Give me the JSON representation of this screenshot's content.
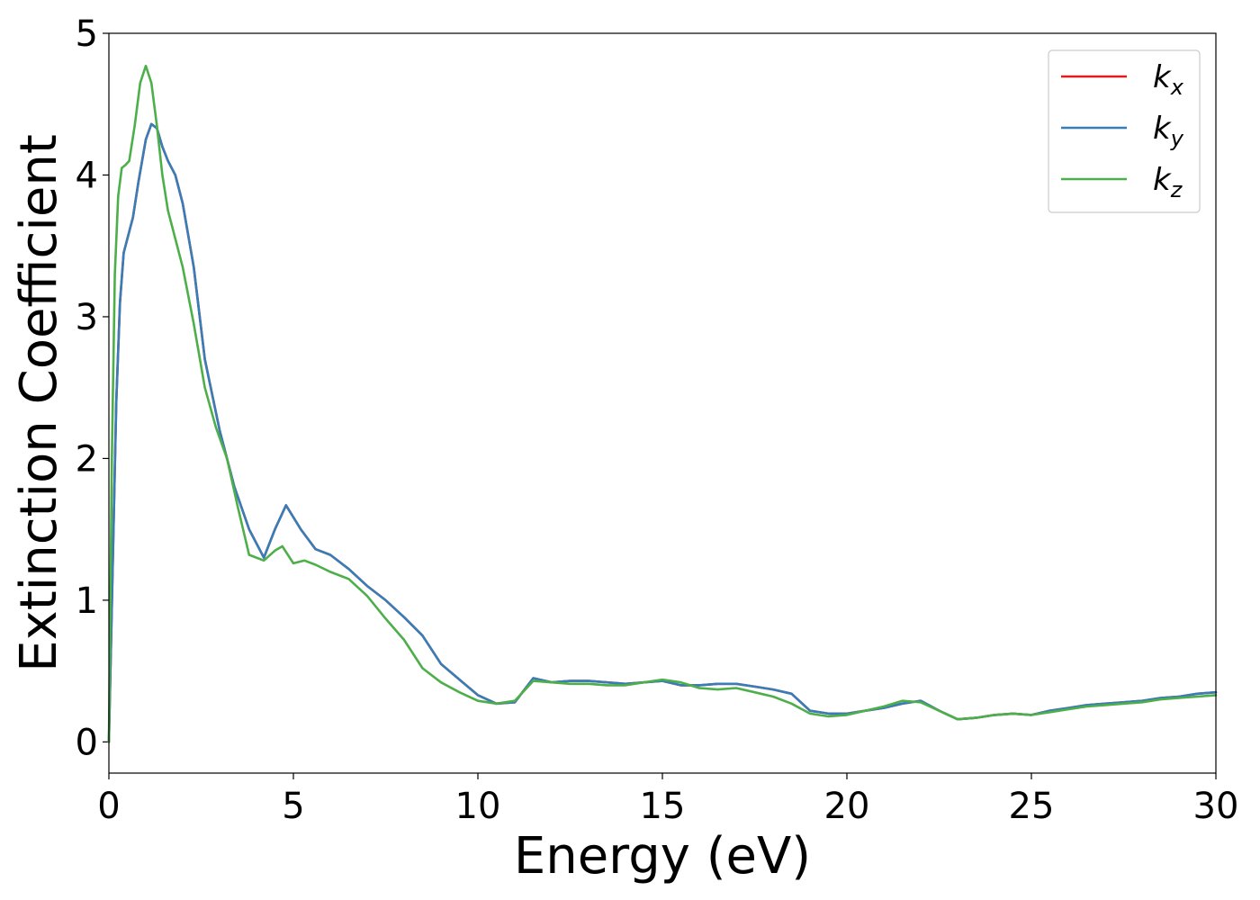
{
  "chart_data": {
    "type": "line",
    "xlabel": "Energy (eV)",
    "ylabel": "Extinction Coefficient",
    "xlim": [
      0,
      30
    ],
    "ylim": [
      -0.22,
      5
    ],
    "xticks": [
      0,
      5,
      10,
      15,
      20,
      25,
      30
    ],
    "yticks": [
      0,
      1,
      2,
      3,
      4,
      5
    ],
    "grid": false,
    "legend_position": "top-right",
    "series": [
      {
        "name": "k",
        "subscript": "x",
        "color": "#e41a1c",
        "x": [
          0,
          0.1,
          0.2,
          0.3,
          0.4,
          0.5,
          0.65,
          0.8,
          1.0,
          1.15,
          1.3,
          1.45,
          1.6,
          1.8,
          2.0,
          2.3,
          2.6,
          3.0,
          3.4,
          3.8,
          4.2,
          4.5,
          4.8,
          5.2,
          5.6,
          6.0,
          6.5,
          7.0,
          7.5,
          8.0,
          8.5,
          9.0,
          9.5,
          10.0,
          10.5,
          11.0,
          11.5,
          12.0,
          12.5,
          13.0,
          13.5,
          14.0,
          14.5,
          15.0,
          15.5,
          16.0,
          16.5,
          17.0,
          17.5,
          18.0,
          18.5,
          19.0,
          19.5,
          20.0,
          20.5,
          21.0,
          21.5,
          22.0,
          22.5,
          23.0,
          23.5,
          24.0,
          24.5,
          25.0,
          25.5,
          26.0,
          26.5,
          27.0,
          27.5,
          28.0,
          28.5,
          29.0,
          29.5,
          30.0
        ],
        "y": [
          0.0,
          1.2,
          2.4,
          3.1,
          3.45,
          3.55,
          3.7,
          3.95,
          4.25,
          4.36,
          4.33,
          4.2,
          4.1,
          4.0,
          3.8,
          3.35,
          2.7,
          2.2,
          1.8,
          1.5,
          1.3,
          1.5,
          1.67,
          1.5,
          1.36,
          1.32,
          1.22,
          1.1,
          1.0,
          0.88,
          0.75,
          0.55,
          0.44,
          0.33,
          0.27,
          0.28,
          0.45,
          0.42,
          0.43,
          0.43,
          0.42,
          0.41,
          0.42,
          0.43,
          0.4,
          0.4,
          0.41,
          0.41,
          0.39,
          0.37,
          0.34,
          0.22,
          0.2,
          0.2,
          0.22,
          0.24,
          0.27,
          0.29,
          0.22,
          0.16,
          0.17,
          0.19,
          0.2,
          0.19,
          0.22,
          0.24,
          0.26,
          0.27,
          0.28,
          0.29,
          0.31,
          0.32,
          0.34,
          0.35
        ]
      },
      {
        "name": "k",
        "subscript": "y",
        "color": "#377eb8",
        "x": [
          0,
          0.1,
          0.2,
          0.3,
          0.4,
          0.5,
          0.65,
          0.8,
          1.0,
          1.15,
          1.3,
          1.45,
          1.6,
          1.8,
          2.0,
          2.3,
          2.6,
          3.0,
          3.4,
          3.8,
          4.2,
          4.5,
          4.8,
          5.2,
          5.6,
          6.0,
          6.5,
          7.0,
          7.5,
          8.0,
          8.5,
          9.0,
          9.5,
          10.0,
          10.5,
          11.0,
          11.5,
          12.0,
          12.5,
          13.0,
          13.5,
          14.0,
          14.5,
          15.0,
          15.5,
          16.0,
          16.5,
          17.0,
          17.5,
          18.0,
          18.5,
          19.0,
          19.5,
          20.0,
          20.5,
          21.0,
          21.5,
          22.0,
          22.5,
          23.0,
          23.5,
          24.0,
          24.5,
          25.0,
          25.5,
          26.0,
          26.5,
          27.0,
          27.5,
          28.0,
          28.5,
          29.0,
          29.5,
          30.0
        ],
        "y": [
          0.0,
          1.2,
          2.4,
          3.1,
          3.45,
          3.55,
          3.7,
          3.95,
          4.25,
          4.36,
          4.33,
          4.2,
          4.1,
          4.0,
          3.8,
          3.35,
          2.7,
          2.2,
          1.8,
          1.5,
          1.3,
          1.5,
          1.67,
          1.5,
          1.36,
          1.32,
          1.22,
          1.1,
          1.0,
          0.88,
          0.75,
          0.55,
          0.44,
          0.33,
          0.27,
          0.28,
          0.45,
          0.42,
          0.43,
          0.43,
          0.42,
          0.41,
          0.42,
          0.43,
          0.4,
          0.4,
          0.41,
          0.41,
          0.39,
          0.37,
          0.34,
          0.22,
          0.2,
          0.2,
          0.22,
          0.24,
          0.27,
          0.29,
          0.22,
          0.16,
          0.17,
          0.19,
          0.2,
          0.19,
          0.22,
          0.24,
          0.26,
          0.27,
          0.28,
          0.29,
          0.31,
          0.32,
          0.34,
          0.35
        ]
      },
      {
        "name": "k",
        "subscript": "z",
        "color": "#4daf4a",
        "x": [
          0,
          0.08,
          0.16,
          0.25,
          0.35,
          0.45,
          0.55,
          0.7,
          0.85,
          1.0,
          1.15,
          1.3,
          1.45,
          1.6,
          1.8,
          2.0,
          2.3,
          2.6,
          2.9,
          3.2,
          3.5,
          3.8,
          4.2,
          4.5,
          4.7,
          5.0,
          5.3,
          5.6,
          6.0,
          6.5,
          7.0,
          7.5,
          8.0,
          8.5,
          9.0,
          9.5,
          10.0,
          10.5,
          11.0,
          11.5,
          12.0,
          12.5,
          13.0,
          13.5,
          14.0,
          14.5,
          15.0,
          15.5,
          16.0,
          16.5,
          17.0,
          17.5,
          18.0,
          18.5,
          19.0,
          19.5,
          20.0,
          20.5,
          21.0,
          21.5,
          22.0,
          22.5,
          23.0,
          23.5,
          24.0,
          24.5,
          25.0,
          25.5,
          26.0,
          26.5,
          27.0,
          27.5,
          28.0,
          28.5,
          29.0,
          29.5,
          30.0
        ],
        "y": [
          0.0,
          2.0,
          3.3,
          3.85,
          4.05,
          4.07,
          4.1,
          4.35,
          4.65,
          4.77,
          4.65,
          4.35,
          4.0,
          3.75,
          3.55,
          3.35,
          2.95,
          2.5,
          2.22,
          2.0,
          1.65,
          1.32,
          1.28,
          1.35,
          1.38,
          1.26,
          1.28,
          1.25,
          1.2,
          1.15,
          1.03,
          0.87,
          0.72,
          0.52,
          0.42,
          0.35,
          0.29,
          0.27,
          0.29,
          0.43,
          0.42,
          0.41,
          0.41,
          0.4,
          0.4,
          0.42,
          0.44,
          0.42,
          0.38,
          0.37,
          0.38,
          0.35,
          0.32,
          0.27,
          0.2,
          0.18,
          0.19,
          0.22,
          0.25,
          0.29,
          0.28,
          0.22,
          0.16,
          0.17,
          0.19,
          0.2,
          0.19,
          0.21,
          0.23,
          0.25,
          0.26,
          0.27,
          0.28,
          0.3,
          0.31,
          0.32,
          0.33
        ]
      }
    ]
  }
}
